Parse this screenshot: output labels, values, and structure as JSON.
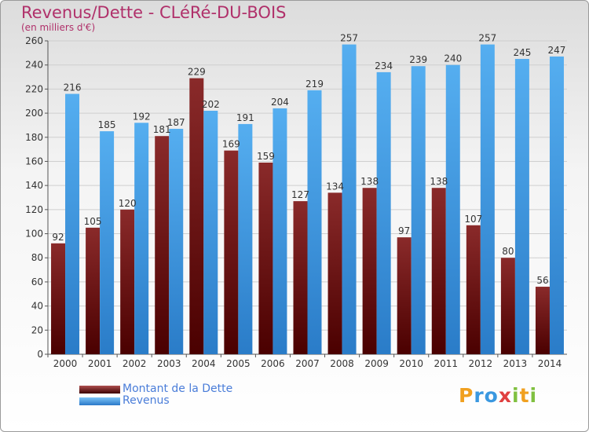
{
  "header": {
    "title": "Revenus/Dette - CLéRé-DU-BOIS",
    "subtitle": "(en milliers d'€)"
  },
  "legend": {
    "items": [
      {
        "label": "Montant de la Dette",
        "color": "#7a1a1a"
      },
      {
        "label": "Revenus",
        "color": "#3a98e0"
      }
    ]
  },
  "logo": {
    "text": "Proxiti",
    "letters": [
      "P",
      "r",
      "o",
      "x",
      "i",
      "t",
      "i"
    ],
    "colors": [
      "#f0a020",
      "#3a98e0",
      "#3a98e0",
      "#e04040",
      "#80c040",
      "#f0a020",
      "#80c040"
    ]
  },
  "chart_data": {
    "type": "bar",
    "categories": [
      "2000",
      "2001",
      "2002",
      "2003",
      "2004",
      "2005",
      "2006",
      "2007",
      "2008",
      "2009",
      "2010",
      "2011",
      "2012",
      "2013",
      "2014"
    ],
    "series": [
      {
        "name": "Montant de la Dette",
        "color": "#7a1a1a",
        "values": [
          92,
          105,
          120,
          181,
          229,
          169,
          159,
          127,
          134,
          138,
          97,
          138,
          107,
          80,
          56
        ]
      },
      {
        "name": "Revenus",
        "color": "#3a98e0",
        "values": [
          216,
          185,
          192,
          187,
          202,
          191,
          204,
          219,
          257,
          234,
          239,
          240,
          257,
          245,
          247
        ]
      }
    ],
    "ylim": [
      0,
      260
    ],
    "yticks": [
      0,
      20,
      40,
      60,
      80,
      100,
      120,
      140,
      160,
      180,
      200,
      220,
      240,
      260
    ],
    "grid": true,
    "title": "Revenus/Dette - CLéRé-DU-BOIS",
    "ylabel": "(en milliers d'€)",
    "xlabel": ""
  }
}
